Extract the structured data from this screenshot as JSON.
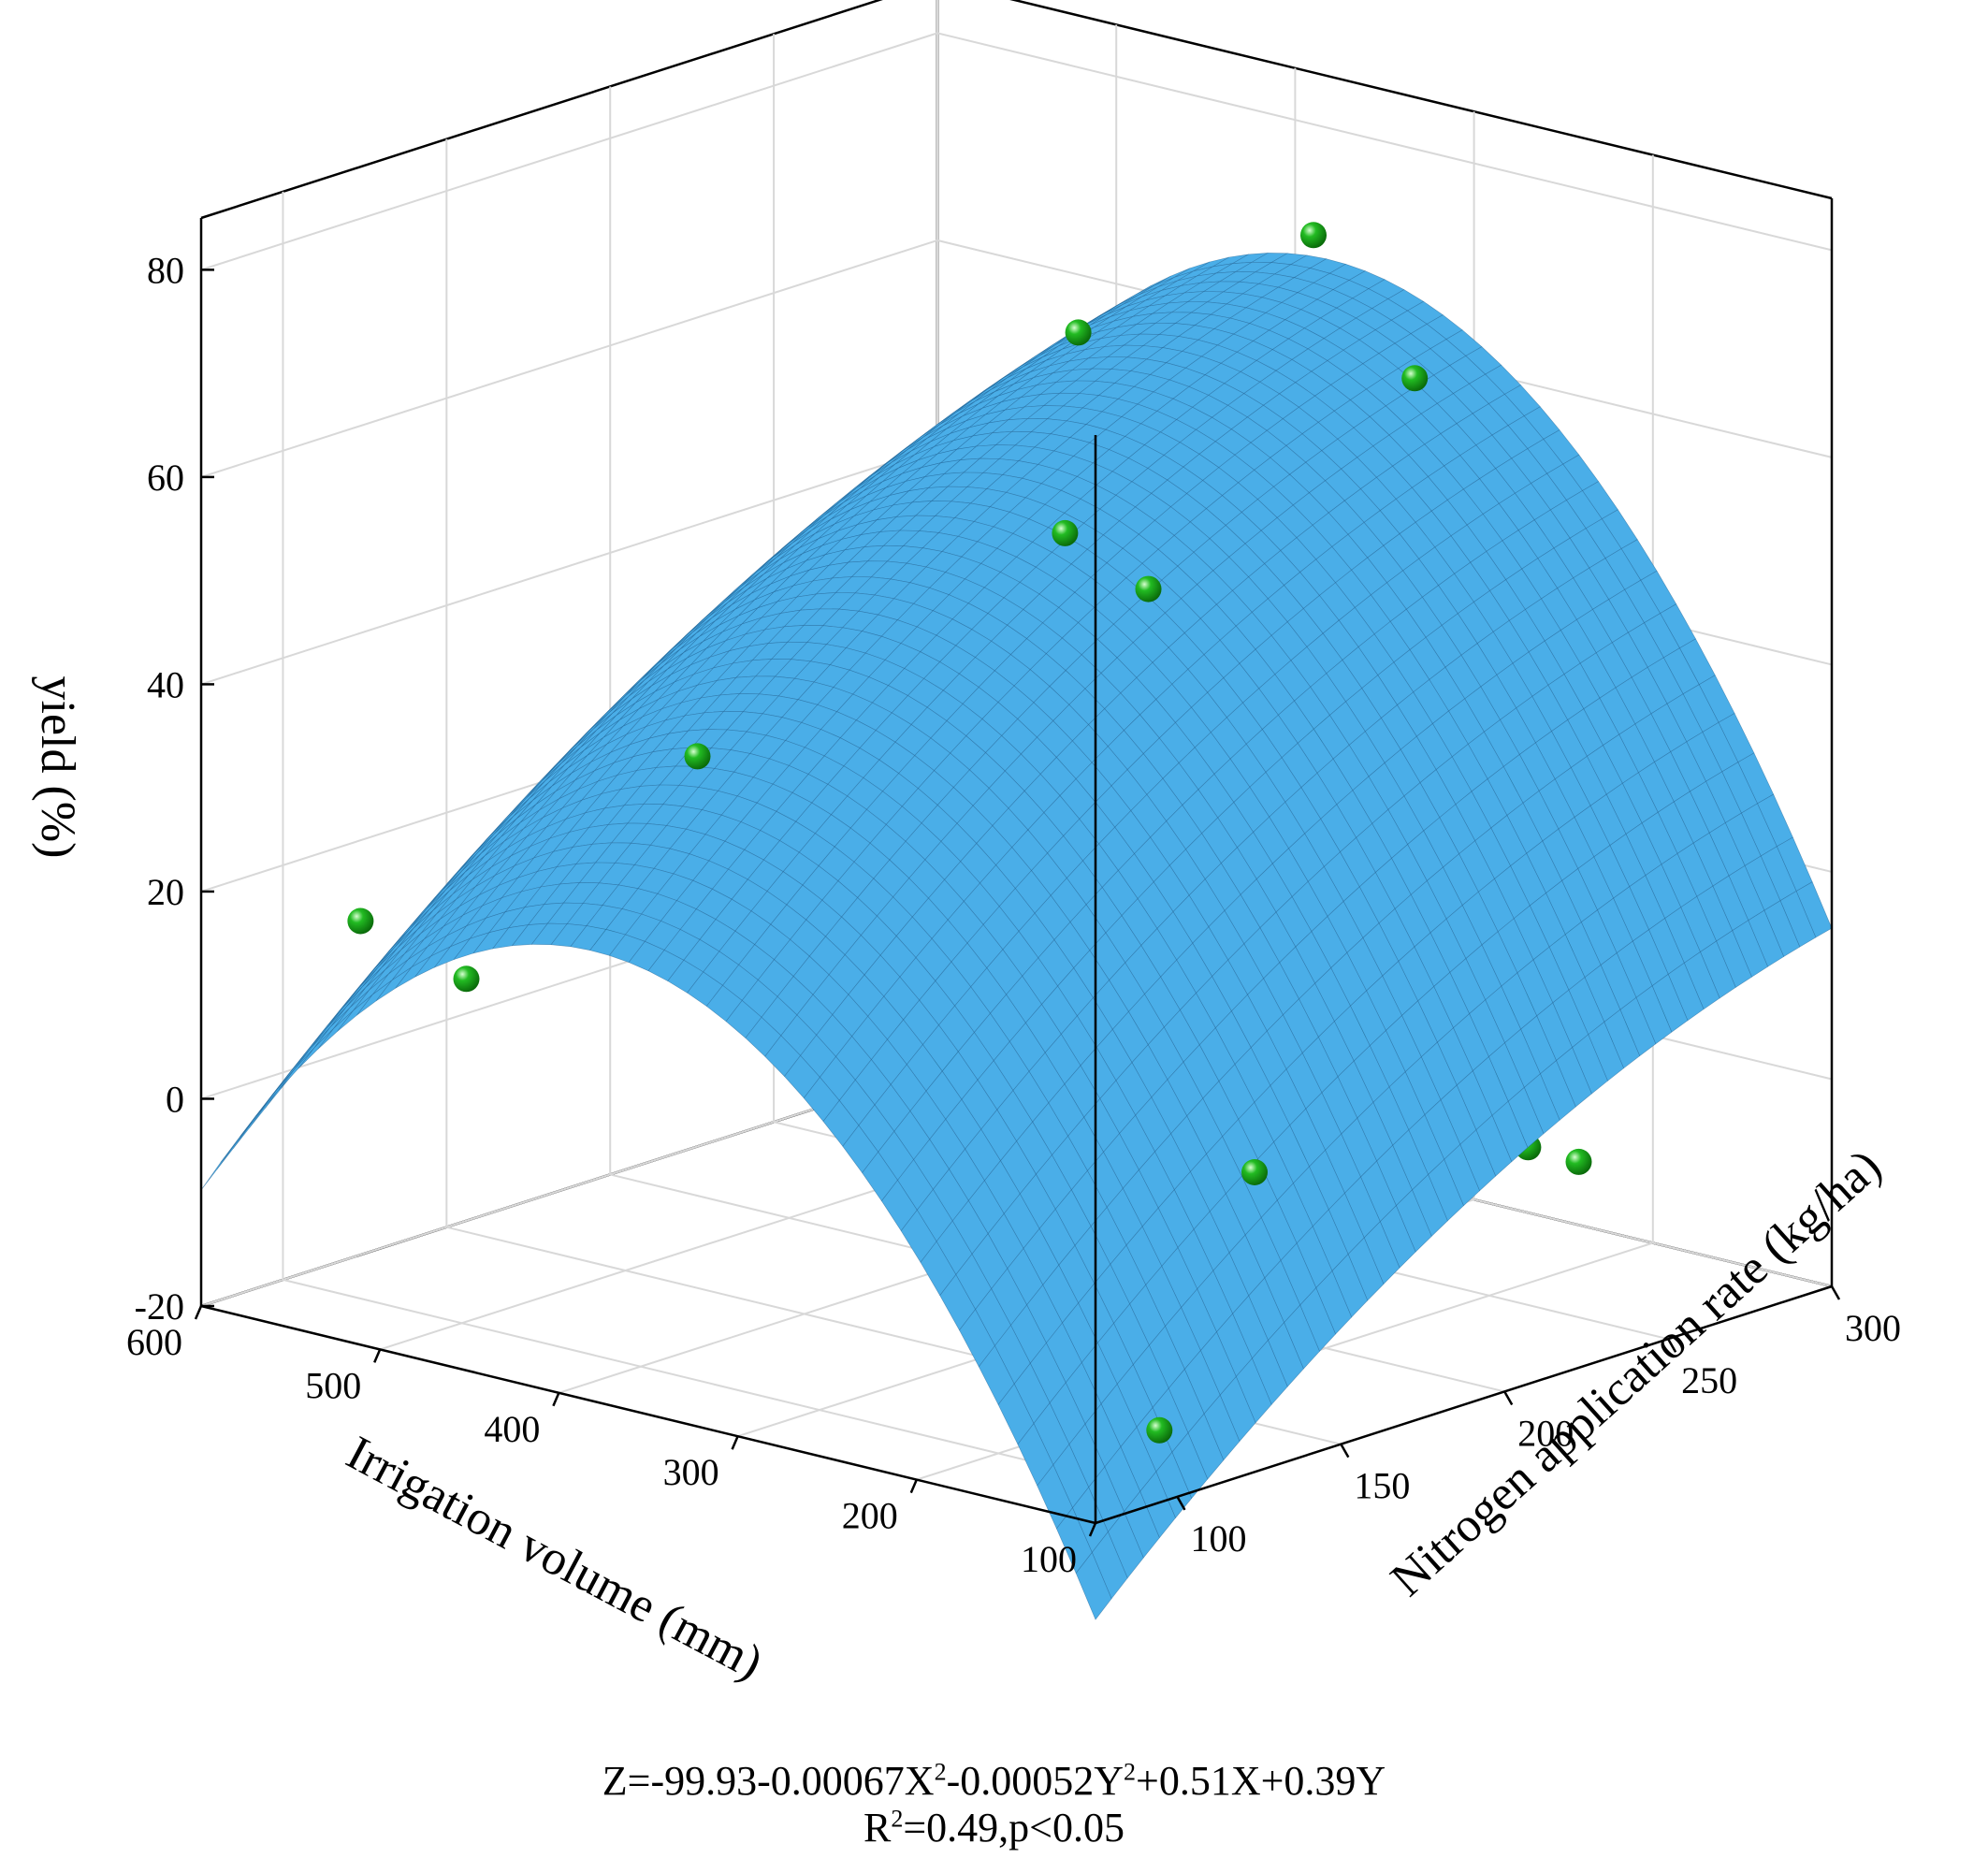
{
  "chart_data": {
    "type": "surface3d",
    "zlabel": "yield (%)",
    "xlabel": "Irrigation volume (mm)",
    "ylabel": "Nitrogen application rate (kg/ha)",
    "z_ticks": [
      "-20",
      "0",
      "20",
      "40",
      "60",
      "80"
    ],
    "x_ticks": [
      "100",
      "200",
      "300",
      "400",
      "500",
      "600"
    ],
    "y_ticks": [
      "100",
      "150",
      "200",
      "250",
      "300"
    ],
    "xlim": [
      100,
      600
    ],
    "ylim": [
      75,
      300
    ],
    "zlim": [
      -20,
      85
    ],
    "surface": {
      "formula_coefficients": {
        "const": -99.93,
        "x2": -0.00067,
        "y2": -0.00052,
        "x": 0.51,
        "y": 0.39
      },
      "color": "#4aaee8",
      "mesh_color": "#1f5f8f"
    },
    "points_color": "#22bb22",
    "points": [
      {
        "x": 520,
        "y": 80,
        "z": 20
      },
      {
        "x": 470,
        "y": 85,
        "z": 16
      },
      {
        "x": 440,
        "y": 110,
        "z": 19
      },
      {
        "x": 350,
        "y": 90,
        "z": 42
      },
      {
        "x": 320,
        "y": 150,
        "z": 8
      },
      {
        "x": 320,
        "y": 190,
        "z": 74
      },
      {
        "x": 300,
        "y": 175,
        "z": 57
      },
      {
        "x": 290,
        "y": 195,
        "z": 50
      },
      {
        "x": 280,
        "y": 240,
        "z": 80
      },
      {
        "x": 260,
        "y": 260,
        "z": 65
      },
      {
        "x": 230,
        "y": 290,
        "z": 9
      },
      {
        "x": 220,
        "y": 270,
        "z": 27
      },
      {
        "x": 200,
        "y": 260,
        "z": 7
      },
      {
        "x": 200,
        "y": 210,
        "z": 10
      },
      {
        "x": 180,
        "y": 280,
        "z": 3
      },
      {
        "x": 180,
        "y": 180,
        "z": 2
      },
      {
        "x": 160,
        "y": 240,
        "z": -3
      },
      {
        "x": 150,
        "y": 250,
        "z": -5
      },
      {
        "x": 140,
        "y": 270,
        "z": 8
      },
      {
        "x": 130,
        "y": 140,
        "z": 6
      },
      {
        "x": 110,
        "y": 100,
        "z": -14
      },
      {
        "x": 160,
        "y": 230,
        "z": 4
      },
      {
        "x": 240,
        "y": 220,
        "z": 36
      }
    ]
  },
  "equation": {
    "line1": {
      "p1": "Z=-99.93-0.00067X",
      "sup1": "2",
      "p2": "-0.00052Y",
      "sup2": "2",
      "p3": "+0.51X+0.39Y"
    },
    "line2": {
      "p1": "R",
      "sup1": "2",
      "p2": "=0.49,p<0.05"
    }
  }
}
